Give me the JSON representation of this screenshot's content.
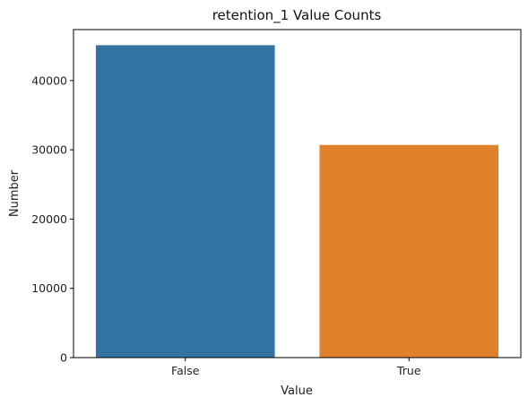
{
  "chart_data": {
    "type": "bar",
    "title": "retention_1 Value Counts",
    "xlabel": "Value",
    "ylabel": "Number",
    "categories": [
      "False",
      "True"
    ],
    "values": [
      45100,
      30700
    ],
    "colors": [
      "#3274a1",
      "#e1812c"
    ],
    "ylim": [
      0,
      47355
    ],
    "yticks": [
      0,
      10000,
      20000,
      30000,
      40000
    ],
    "yticks_labels": [
      "0",
      "10000",
      "20000",
      "30000",
      "40000"
    ],
    "grid": false,
    "legend": "none"
  }
}
